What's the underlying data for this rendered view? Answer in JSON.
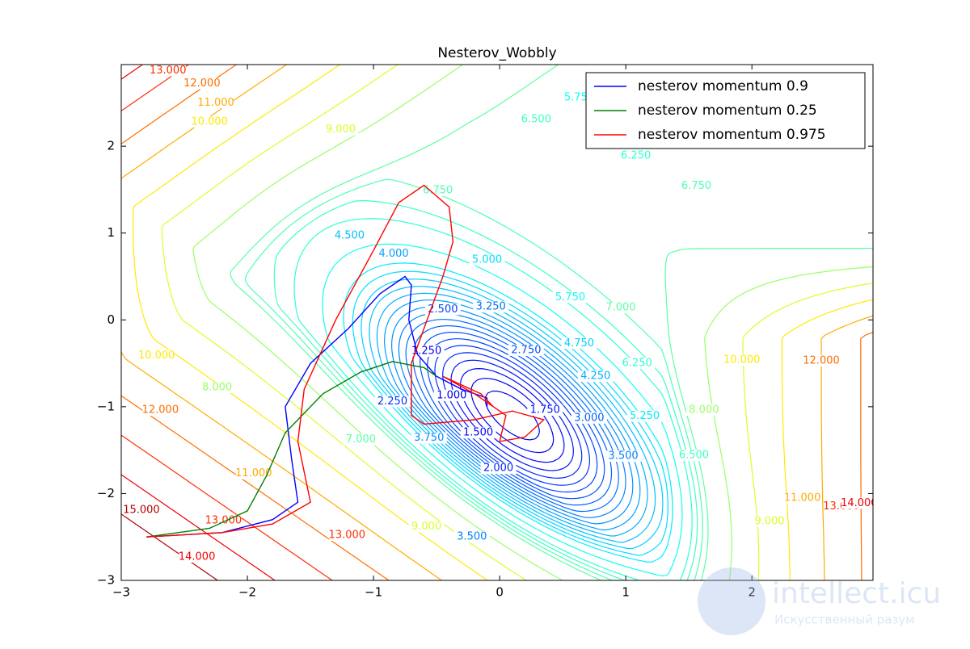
{
  "chart_data": {
    "type": "contour",
    "title": "Nesterov_Wobbly",
    "xlim": [
      -3,
      2.96
    ],
    "ylim": [
      -3,
      2.94
    ],
    "xticks": [
      {
        "value": -3,
        "label": "−3"
      },
      {
        "value": -2,
        "label": "−2"
      },
      {
        "value": -1,
        "label": "−1"
      },
      0,
      1,
      2
    ],
    "yticks": [
      {
        "value": -3,
        "label": "−3"
      },
      {
        "value": -2,
        "label": "−2"
      },
      {
        "value": -1,
        "label": "−1"
      },
      0,
      1,
      2
    ],
    "colormap": "jet",
    "legend": "upper right",
    "levels": [
      {
        "value": 1,
        "label": "1.000"
      },
      {
        "value": 1.25,
        "label": "1.250"
      },
      {
        "value": 1.5,
        "label": "1.500"
      },
      {
        "value": 1.75,
        "label": "1.750"
      },
      {
        "value": 2,
        "label": "2.000"
      },
      {
        "value": 2.25,
        "label": "2.250"
      },
      {
        "value": 2.5,
        "label": "2.500"
      },
      {
        "value": 2.75,
        "label": "2.750"
      },
      {
        "value": 3,
        "label": "3.000"
      },
      {
        "value": 3.25,
        "label": "3.250"
      },
      {
        "value": 3.5,
        "label": "3.500"
      },
      {
        "value": 3.75,
        "label": "3.750"
      },
      {
        "value": 4,
        "label": "4.000"
      },
      {
        "value": 4.25,
        "label": "4.250"
      },
      {
        "value": 4.5,
        "label": "4.500"
      },
      {
        "value": 4.75,
        "label": "4.750"
      },
      {
        "value": 5,
        "label": "5.000"
      },
      {
        "value": 5.25,
        "label": "5.250"
      },
      {
        "value": 5.75,
        "label": "5.750"
      },
      {
        "value": 6.25,
        "label": "6.250"
      },
      {
        "value": 6.5,
        "label": "6.500"
      },
      {
        "value": 6.75,
        "label": "6.750"
      },
      {
        "value": 7,
        "label": "7.000"
      },
      {
        "value": 8,
        "label": "8.000"
      },
      {
        "value": 9,
        "label": "9.000"
      },
      {
        "value": 10,
        "label": "10.000"
      },
      {
        "value": 11,
        "label": "11.000"
      },
      {
        "value": 12,
        "label": "12.000"
      },
      {
        "value": 13,
        "label": "13.000"
      },
      {
        "value": 14,
        "label": "14.000"
      },
      {
        "value": 15,
        "label": "15.000"
      }
    ],
    "contour_labels": [
      {
        "level": 28,
        "x": -2.63,
        "y": 2.87
      },
      {
        "level": 27,
        "x": -2.36,
        "y": 2.72
      },
      {
        "level": 26,
        "x": -2.25,
        "y": 2.5
      },
      {
        "level": 25,
        "x": -2.3,
        "y": 2.28
      },
      {
        "level": 24,
        "x": -1.26,
        "y": 2.19
      },
      {
        "level": 21,
        "x": -0.49,
        "y": 1.49
      },
      {
        "level": 21,
        "x": 1.56,
        "y": 1.54
      },
      {
        "level": 19,
        "x": 1.08,
        "y": 1.89
      },
      {
        "level": 20,
        "x": 0.29,
        "y": 2.31
      },
      {
        "level": 18,
        "x": 0.63,
        "y": 2.56
      },
      {
        "level": 14,
        "x": -1.19,
        "y": 0.97
      },
      {
        "level": 12,
        "x": -0.84,
        "y": 0.76
      },
      {
        "level": 16,
        "x": -0.1,
        "y": 0.69
      },
      {
        "level": 6,
        "x": -0.45,
        "y": 0.12
      },
      {
        "level": 9,
        "x": -0.07,
        "y": 0.15
      },
      {
        "level": 18,
        "x": 0.56,
        "y": 0.26
      },
      {
        "level": 22,
        "x": 0.96,
        "y": 0.14
      },
      {
        "level": 15,
        "x": 0.63,
        "y": -0.27
      },
      {
        "level": 7,
        "x": 0.21,
        "y": -0.35
      },
      {
        "level": 1,
        "x": -0.58,
        "y": -0.36
      },
      {
        "level": 19,
        "x": 1.09,
        "y": -0.5
      },
      {
        "level": 13,
        "x": 0.76,
        "y": -0.65
      },
      {
        "level": 25,
        "x": -2.72,
        "y": -0.41
      },
      {
        "level": 25,
        "x": 1.92,
        "y": -0.46
      },
      {
        "level": 27,
        "x": 2.55,
        "y": -0.47
      },
      {
        "level": 0,
        "x": -0.38,
        "y": -0.87
      },
      {
        "level": 5,
        "x": -0.85,
        "y": -0.94
      },
      {
        "level": 3,
        "x": 0.36,
        "y": -1.04
      },
      {
        "level": 8,
        "x": 0.71,
        "y": -1.13
      },
      {
        "level": 17,
        "x": 1.15,
        "y": -1.11
      },
      {
        "level": 23,
        "x": -2.24,
        "y": -0.78
      },
      {
        "level": 27,
        "x": -2.69,
        "y": -1.04
      },
      {
        "level": 23,
        "x": 1.62,
        "y": -1.04
      },
      {
        "level": 2,
        "x": -0.17,
        "y": -1.3
      },
      {
        "level": 10,
        "x": 0.98,
        "y": -1.57
      },
      {
        "level": 20,
        "x": 1.54,
        "y": -1.56
      },
      {
        "level": 22,
        "x": -1.1,
        "y": -1.38
      },
      {
        "level": 11,
        "x": -0.56,
        "y": -1.36
      },
      {
        "level": 4,
        "x": -0.01,
        "y": -1.71
      },
      {
        "level": 26,
        "x": -1.95,
        "y": -1.77
      },
      {
        "level": 30,
        "x": -2.84,
        "y": -2.19
      },
      {
        "level": 28,
        "x": -2.19,
        "y": -2.31
      },
      {
        "level": 24,
        "x": -0.58,
        "y": -2.38
      },
      {
        "level": 10,
        "x": -0.22,
        "y": -2.5
      },
      {
        "level": 28,
        "x": -1.21,
        "y": -2.48
      },
      {
        "level": 29,
        "x": -2.4,
        "y": -2.73
      },
      {
        "level": 24,
        "x": 2.14,
        "y": -2.32
      },
      {
        "level": 26,
        "x": 2.4,
        "y": -2.05
      },
      {
        "level": 28,
        "x": 2.71,
        "y": -2.15
      },
      {
        "level": 29,
        "x": 2.85,
        "y": -2.11
      }
    ],
    "series": [
      {
        "name": "nesterov momentum 0.9",
        "color": "#0000ff",
        "x": [
          -2.8,
          -2.2,
          -1.8,
          -1.6,
          -1.65,
          -1.7,
          -1.5,
          -1.2,
          -0.95,
          -0.75,
          -0.7,
          -0.72,
          -0.65,
          -0.5,
          -0.3,
          -0.1,
          -0.1
        ],
        "y": [
          -2.5,
          -2.45,
          -2.3,
          -2.1,
          -1.6,
          -1.0,
          -0.5,
          -0.1,
          0.3,
          0.5,
          0.4,
          0.0,
          -0.4,
          -0.65,
          -0.8,
          -0.9,
          -1.0
        ]
      },
      {
        "name": "nesterov momentum 0.25",
        "color": "#008000",
        "x": [
          -2.8,
          -2.3,
          -2.0,
          -1.85,
          -1.7,
          -1.4,
          -1.1,
          -0.85,
          -0.6,
          -0.5
        ],
        "y": [
          -2.5,
          -2.4,
          -2.2,
          -1.8,
          -1.3,
          -0.85,
          -0.6,
          -0.48,
          -0.55,
          -0.65
        ]
      },
      {
        "name": "nesterov momentum 0.975",
        "color": "#ff0000",
        "x": [
          -2.8,
          -2.2,
          -1.8,
          -1.5,
          -1.6,
          -1.55,
          -1.3,
          -1.0,
          -0.8,
          -0.6,
          -0.4,
          -0.37,
          -0.45,
          -0.6,
          -0.7,
          -0.7,
          -0.6,
          -0.2,
          0.1,
          0.35,
          0.2,
          0.0,
          0.05,
          -0.2,
          -0.45,
          -0.15,
          -0.05
        ],
        "y": [
          -2.5,
          -2.45,
          -2.35,
          -2.1,
          -1.4,
          -0.8,
          0.0,
          0.8,
          1.35,
          1.55,
          1.3,
          0.9,
          0.5,
          -0.1,
          -0.5,
          -1.1,
          -1.2,
          -1.15,
          -1.05,
          -1.15,
          -1.35,
          -1.4,
          -1.1,
          -0.85,
          -0.65,
          -0.85,
          -1.0
        ]
      }
    ]
  },
  "watermark": {
    "site": "intellect.icu",
    "tagline": "Искусственный разум"
  }
}
